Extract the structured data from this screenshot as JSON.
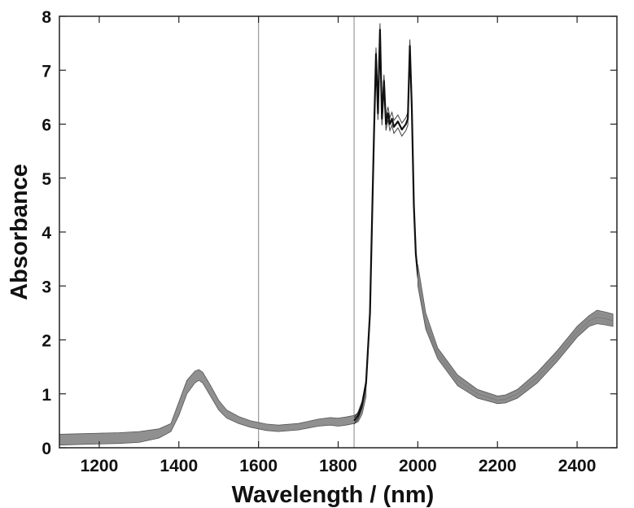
{
  "chart_data": {
    "type": "line",
    "title": "",
    "xlabel": "Wavelength / (nm)",
    "ylabel": "Absorbance",
    "xlim": [
      1100,
      2500
    ],
    "ylim": [
      0,
      8
    ],
    "x_ticks": [
      1200,
      1400,
      1600,
      1800,
      2000,
      2200,
      2400
    ],
    "y_ticks": [
      0,
      1,
      2,
      3,
      4,
      5,
      6,
      7,
      8
    ],
    "grid": false,
    "legend": "none",
    "vertical_reference_lines": [
      1600,
      1840
    ],
    "colors": {
      "band": "#8a8a8a",
      "line": "#111111",
      "ref_line": "#9a9a9a"
    },
    "series": [
      {
        "style": "band",
        "x": [
          1100,
          1150,
          1200,
          1250,
          1300,
          1350,
          1380,
          1400,
          1420,
          1440,
          1450,
          1460,
          1480,
          1500,
          1520,
          1550,
          1580,
          1600,
          1620,
          1650,
          1700,
          1750,
          1780,
          1800,
          1820,
          1840,
          1850,
          1860,
          1870
        ],
        "lower": [
          0.05,
          0.06,
          0.07,
          0.08,
          0.1,
          0.18,
          0.3,
          0.6,
          1.0,
          1.2,
          1.25,
          1.2,
          0.95,
          0.7,
          0.55,
          0.45,
          0.38,
          0.35,
          0.32,
          0.3,
          0.33,
          0.4,
          0.42,
          0.4,
          0.42,
          0.45,
          0.48,
          0.62,
          0.95
        ],
        "upper": [
          0.25,
          0.26,
          0.27,
          0.28,
          0.3,
          0.35,
          0.45,
          0.85,
          1.25,
          1.42,
          1.45,
          1.4,
          1.15,
          0.88,
          0.7,
          0.58,
          0.5,
          0.47,
          0.44,
          0.42,
          0.45,
          0.53,
          0.56,
          0.55,
          0.57,
          0.6,
          0.64,
          0.8,
          1.15
        ]
      },
      {
        "style": "line",
        "x": [
          1840,
          1850,
          1860,
          1870,
          1880,
          1885,
          1890,
          1895,
          1900,
          1905,
          1910,
          1915,
          1920,
          1925,
          1930,
          1935,
          1940,
          1950,
          1960,
          1970,
          1975,
          1980,
          1985,
          1990,
          1995,
          2000,
          2010,
          2020,
          2050,
          2100,
          2150,
          2200,
          2220,
          2250,
          2300,
          2350,
          2400,
          2430,
          2450,
          2470,
          2490
        ],
        "y": [
          0.5,
          0.6,
          0.8,
          1.2,
          2.5,
          4.2,
          5.8,
          7.3,
          6.2,
          7.75,
          6.1,
          6.8,
          6.0,
          6.2,
          6.0,
          6.1,
          5.95,
          6.05,
          5.9,
          6.0,
          6.1,
          7.45,
          6.3,
          4.5,
          3.6,
          3.2,
          2.7,
          2.3,
          1.75,
          1.25,
          1.0,
          0.88,
          0.9,
          1.0,
          1.3,
          1.7,
          2.15,
          2.35,
          2.42,
          2.4,
          2.35
        ]
      },
      {
        "style": "band",
        "x": [
          2000,
          2020,
          2050,
          2100,
          2150,
          2200,
          2220,
          2250,
          2300,
          2350,
          2400,
          2430,
          2450,
          2470,
          2490
        ],
        "lower": [
          3.0,
          2.2,
          1.65,
          1.15,
          0.92,
          0.82,
          0.83,
          0.92,
          1.2,
          1.6,
          2.05,
          2.25,
          2.3,
          2.28,
          2.25
        ],
        "upper": [
          3.4,
          2.5,
          1.85,
          1.35,
          1.08,
          0.96,
          0.98,
          1.08,
          1.4,
          1.8,
          2.25,
          2.45,
          2.55,
          2.52,
          2.48
        ]
      }
    ]
  }
}
